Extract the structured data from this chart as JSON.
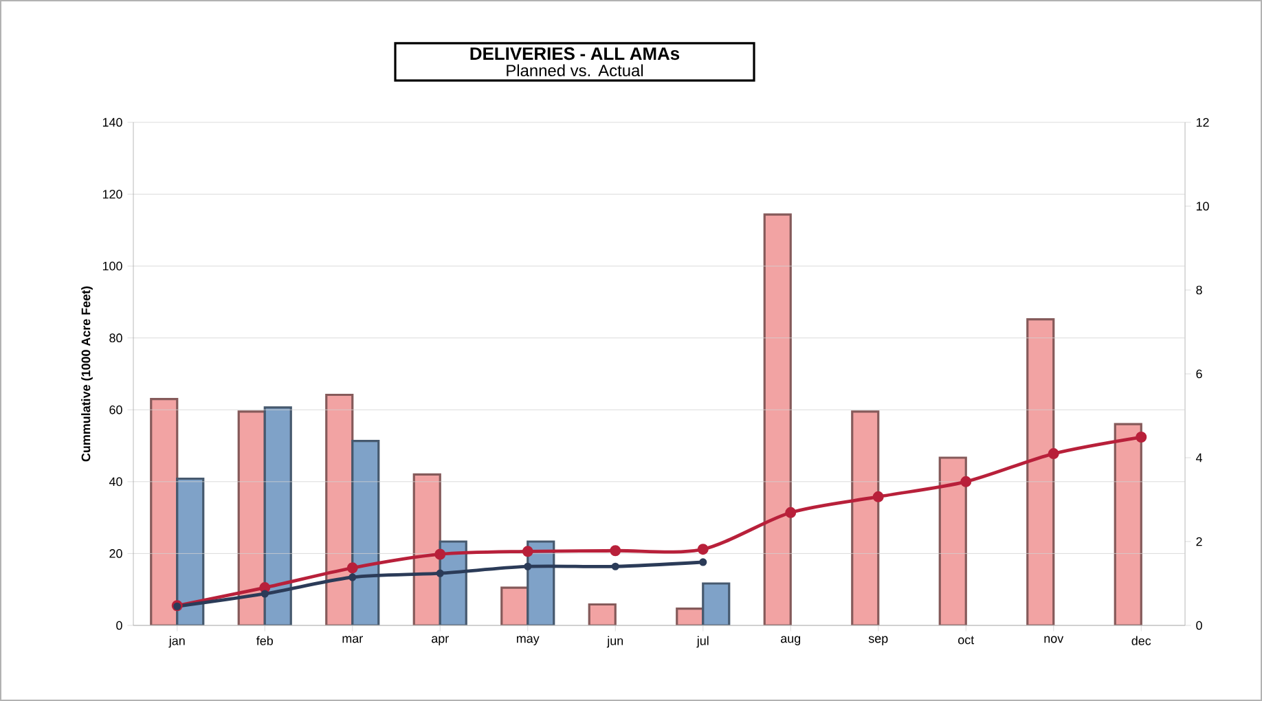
{
  "chart_data": {
    "type": "bar",
    "title": "DELIVERIES - ALL AMAs",
    "subtitle": "Planned vs. Actual",
    "ylabel": "Cummulative (1000 Acre Feet)",
    "categories": [
      "jan",
      "feb",
      "mar",
      "apr",
      "may",
      "jun",
      "jul",
      "aug",
      "sep",
      "oct",
      "nov",
      "dec"
    ],
    "series": [
      {
        "axis": "y2",
        "color": "#f2a3a3",
        "values": [
          5.4,
          5.1,
          5.5,
          3.6,
          0.9,
          0.5,
          0.4,
          9.8,
          5.1,
          4.0,
          7.3,
          4.8
        ]
      },
      {
        "axis": "y2",
        "color": "#7fa2c8",
        "values": [
          3.5,
          5.2,
          4.4,
          2.0,
          2.0,
          null,
          1.0,
          null,
          null,
          null,
          null,
          null
        ]
      },
      {
        "type": "line",
        "axis": "y",
        "color": "#b8203a",
        "values": [
          5.5,
          10.5,
          16,
          19.8,
          20.6,
          20.8,
          21.2,
          31.4,
          35.8,
          40,
          47.8,
          52.4
        ]
      },
      {
        "type": "line",
        "axis": "y",
        "color": "#2b3b58",
        "values": [
          5.3,
          8.8,
          13.4,
          14.5,
          16.4,
          16.4,
          17.6,
          null,
          null,
          null,
          null,
          null
        ]
      }
    ],
    "ylim": [
      0,
      140
    ],
    "yticks": [
      0,
      20,
      40,
      60,
      80,
      100,
      120,
      140
    ],
    "y2lim": [
      0,
      12
    ],
    "y2ticks": [
      0,
      2,
      4,
      6,
      8,
      10,
      12
    ],
    "grid": "y",
    "marker": "circle"
  }
}
